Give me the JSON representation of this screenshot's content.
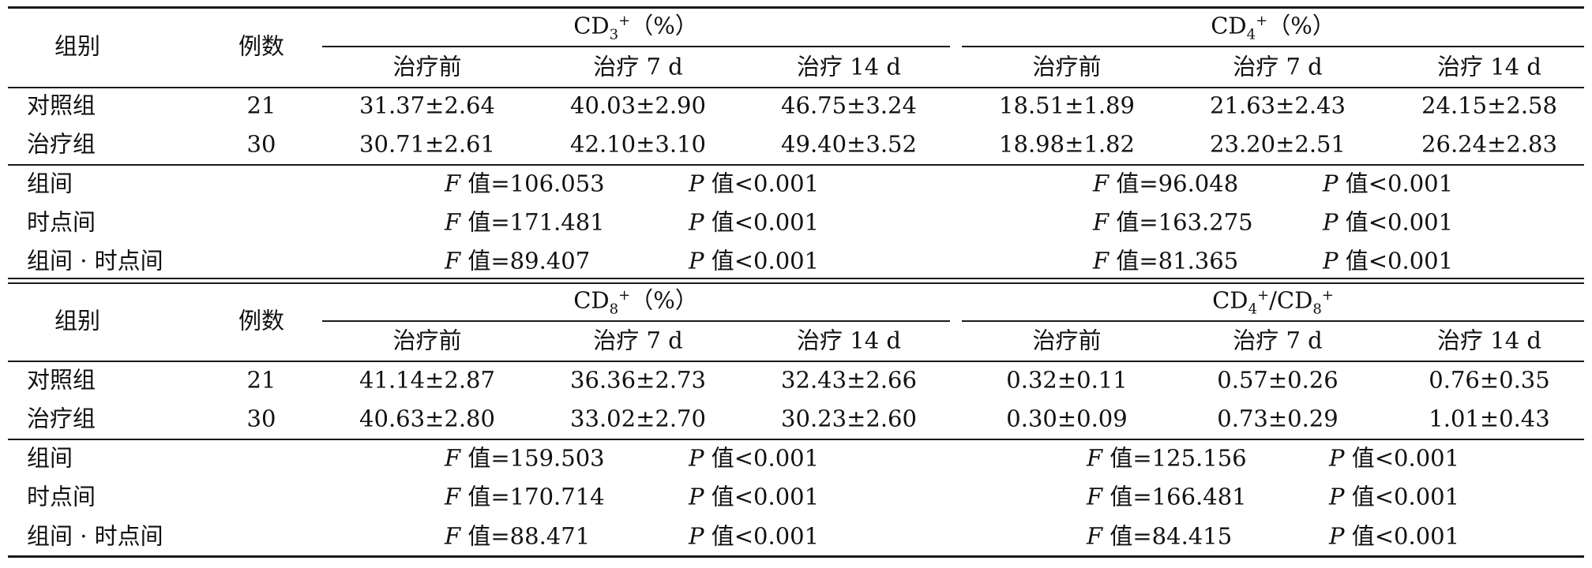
{
  "table": {
    "hdr_group": "组别",
    "hdr_n": "例数",
    "time_labels": [
      "治疗前",
      "治疗 7 d",
      "治疗 14 d"
    ],
    "sections": [
      {
        "col_a": {
          "base": "CD",
          "sub": "3",
          "sup": "+",
          "tail": "（%）"
        },
        "col_b": {
          "base": "CD",
          "sub": "4",
          "sup": "+",
          "tail": "（%）"
        },
        "rows": [
          {
            "group": "对照组",
            "n": "21",
            "a": [
              "31.37±2.64",
              "40.03±2.90",
              "46.75±3.24"
            ],
            "b": [
              "18.51±1.89",
              "21.63±2.43",
              "24.15±2.58"
            ]
          },
          {
            "group": "治疗组",
            "n": "30",
            "a": [
              "30.71±2.61",
              "42.10±3.10",
              "49.40±3.52"
            ],
            "b": [
              "18.98±1.82",
              "23.20±2.51",
              "26.24±2.83"
            ]
          }
        ],
        "stats": [
          {
            "label": "组间",
            "a_f": "106.053",
            "a_p": "<0.001",
            "b_f": "96.048",
            "b_p": "<0.001"
          },
          {
            "label": "时点间",
            "a_f": "171.481",
            "a_p": "<0.001",
            "b_f": "163.275",
            "b_p": "<0.001"
          },
          {
            "label": "组间 · 时点间",
            "a_f": "89.407",
            "a_p": "<0.001",
            "b_f": "81.365",
            "b_p": "<0.001"
          }
        ]
      },
      {
        "col_a": {
          "base": "CD",
          "sub": "8",
          "sup": "+",
          "tail": "（%）"
        },
        "col_b_parts": {
          "base1": "CD",
          "sub1": "4",
          "sup1": "+",
          "slash": "/",
          "base2": "CD",
          "sub2": "8",
          "sup2": "+"
        },
        "rows": [
          {
            "group": "对照组",
            "n": "21",
            "a": [
              "41.14±2.87",
              "36.36±2.73",
              "32.43±2.66"
            ],
            "b": [
              "0.32±0.11",
              "0.57±0.26",
              "0.76±0.35"
            ]
          },
          {
            "group": "治疗组",
            "n": "30",
            "a": [
              "40.63±2.80",
              "33.02±2.70",
              "30.23±2.60"
            ],
            "b": [
              "0.30±0.09",
              "0.73±0.29",
              "1.01±0.43"
            ]
          }
        ],
        "stats": [
          {
            "label": "组间",
            "a_f": "159.503",
            "a_p": "<0.001",
            "b_f": "125.156",
            "b_p": "<0.001"
          },
          {
            "label": "时点间",
            "a_f": "170.714",
            "a_p": "<0.001",
            "b_f": "166.481",
            "b_p": "<0.001"
          },
          {
            "label": "组间 · 时点间",
            "a_f": "88.471",
            "a_p": "<0.001",
            "b_f": "84.415",
            "b_p": "<0.001"
          }
        ]
      }
    ],
    "f_prefix": "F",
    "p_prefix": "P",
    "val_word": "值",
    "eq": "="
  }
}
